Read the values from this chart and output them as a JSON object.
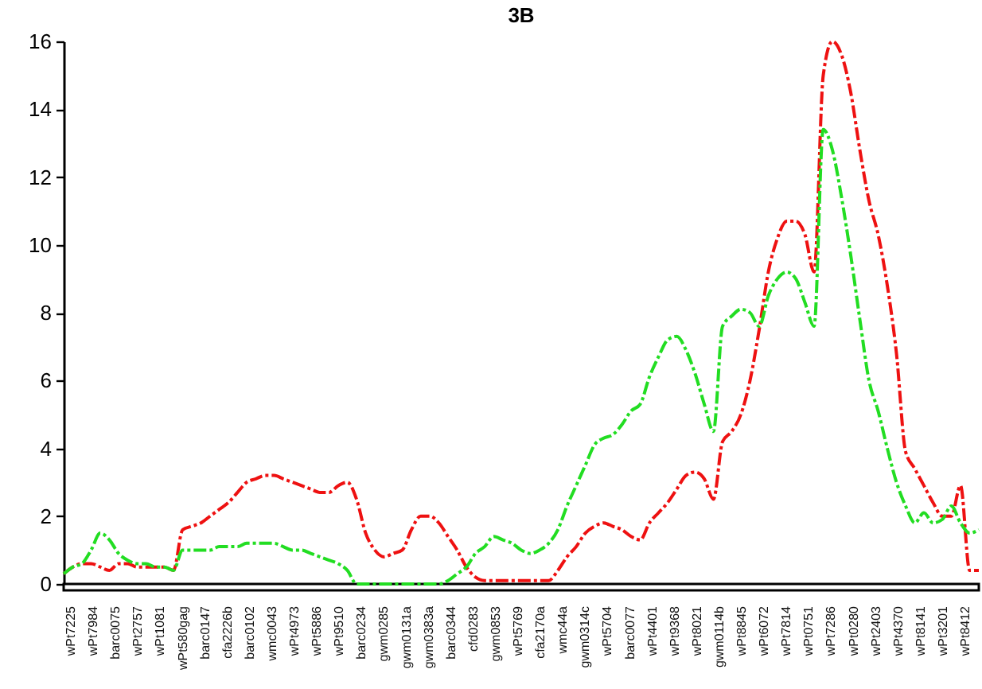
{
  "chart_data": {
    "type": "line",
    "title": "3B",
    "line_style": "dashed",
    "categories": [
      null,
      null,
      null,
      null,
      null,
      null,
      null,
      null,
      null,
      null,
      null,
      null,
      null,
      null,
      null,
      null,
      null,
      null,
      null,
      null,
      null,
      null,
      null,
      null,
      null,
      null,
      null,
      null,
      null,
      null,
      null,
      null,
      null,
      null,
      null,
      null,
      null,
      null,
      null,
      null,
      null,
      null,
      null,
      null,
      null,
      null,
      null,
      null,
      null,
      null,
      null,
      null,
      null,
      null,
      null,
      null,
      null,
      null,
      null,
      null,
      null,
      null,
      null,
      null,
      null,
      null,
      null,
      null,
      null,
      null,
      null,
      null,
      null,
      null,
      null,
      null,
      null,
      null,
      null,
      null,
      null,
      null,
      null,
      null,
      null,
      null,
      null,
      null,
      null,
      null,
      null,
      null,
      null,
      null,
      null,
      null,
      null,
      null,
      null,
      null,
      null
    ],
    "ylim": [
      0,
      16
    ],
    "yticks": [
      0,
      2,
      4,
      6,
      8,
      10,
      12,
      14,
      16
    ],
    "series": [
      {
        "color": "#ee1111",
        "values": [
          0.3,
          0.5,
          0.6,
          0.6,
          0.5,
          0.4,
          0.6,
          0.6,
          0.5,
          0.5,
          0.5,
          0.5,
          0.4,
          1.6,
          1.7,
          1.8,
          2.0,
          2.2,
          2.4,
          2.7,
          3.0,
          3.1,
          3.2,
          3.2,
          3.1,
          3.0,
          2.9,
          2.8,
          2.7,
          2.7,
          2.9,
          3.0,
          2.5,
          1.5,
          1.0,
          0.8,
          0.9,
          1.0,
          1.6,
          2.0,
          2.0,
          1.8,
          1.4,
          1.0,
          0.5,
          0.2,
          0.1,
          0.1,
          0.1,
          0.1,
          0.1,
          0.1,
          0.1,
          0.1,
          0.4,
          0.8,
          1.1,
          1.5,
          1.7,
          1.8,
          1.7,
          1.6,
          1.4,
          1.3,
          1.8,
          2.1,
          2.4,
          2.8,
          3.2,
          3.3,
          3.1,
          2.5,
          4.2,
          4.5,
          5.0,
          6.0,
          7.5,
          9.2,
          10.2,
          10.7,
          10.7,
          10.3,
          9.2,
          15.0,
          16.0,
          15.6,
          14.5,
          12.8,
          11.3,
          10.3,
          8.8,
          6.8,
          3.9,
          3.4,
          2.9,
          2.4,
          2.0,
          2.0,
          2.9,
          0.4,
          0.4
        ]
      },
      {
        "color": "#22dd22",
        "values": [
          0.3,
          0.5,
          0.6,
          1.0,
          1.5,
          1.3,
          0.9,
          0.7,
          0.6,
          0.6,
          0.5,
          0.5,
          0.4,
          1.0,
          1.0,
          1.0,
          1.0,
          1.1,
          1.1,
          1.1,
          1.2,
          1.2,
          1.2,
          1.2,
          1.1,
          1.0,
          1.0,
          0.9,
          0.8,
          0.7,
          0.6,
          0.4,
          0.0,
          0.0,
          0.0,
          0.0,
          0.0,
          0.0,
          0.0,
          0.0,
          0.0,
          0.0,
          0.1,
          0.3,
          0.5,
          0.9,
          1.1,
          1.4,
          1.3,
          1.2,
          1.0,
          0.9,
          1.0,
          1.2,
          1.6,
          2.3,
          2.9,
          3.5,
          4.1,
          4.3,
          4.4,
          4.7,
          5.1,
          5.3,
          6.1,
          6.7,
          7.2,
          7.3,
          6.9,
          6.2,
          5.3,
          4.5,
          7.6,
          7.9,
          8.1,
          8.0,
          7.6,
          8.5,
          9.0,
          9.2,
          9.0,
          8.3,
          7.6,
          13.4,
          12.8,
          11.4,
          9.7,
          7.8,
          6.0,
          5.1,
          4.0,
          3.0,
          2.3,
          1.8,
          2.1,
          1.8,
          1.9,
          2.3,
          1.8,
          1.5,
          1.6
        ]
      }
    ],
    "annotations": [
      "wPt7225",
      "wPt7984",
      "barc0075",
      "wPt2757",
      "wPt1081",
      "wPt580gag",
      "barc0147",
      "cfa2226b",
      "barc0102",
      "wmc0043",
      "wPt4973",
      "wPt5886",
      "wPt9510",
      "barc0234",
      "gwm0285",
      "gwm0131a",
      "gwm0383a",
      "barc0344",
      "cfd0283",
      "gwm0853",
      "wPt5769",
      "cfa2170a",
      "wmc44a",
      "gwm0314c",
      "wPt5704",
      "barc0077",
      "wPt4401",
      "wPt9368",
      "wPt8021",
      "gwm0114b",
      "wPt8845",
      "wPt6072",
      "wPt7814",
      "wPt0751",
      "wPt7286",
      "wPt0280",
      "wPt2403",
      "wPt4370",
      "wPt8141",
      "wPt3201",
      "wPt8412"
    ]
  }
}
